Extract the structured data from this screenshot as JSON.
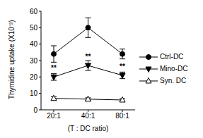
{
  "chart_data": {
    "type": "line",
    "categories": [
      "20:1",
      "40:1",
      "80:1"
    ],
    "x_label": "(T : DC ratio)",
    "y_label": "Thymidine uptake (X10⁻³)",
    "ylim": [
      0,
      60
    ],
    "yticks": [
      0,
      10,
      20,
      30,
      40,
      50,
      60
    ],
    "grid": false,
    "legend": "right",
    "series": [
      {
        "name": "Ctrl-DC",
        "color": "#000000",
        "marker": "circle",
        "line_style": "solid",
        "values": [
          34,
          50,
          34
        ],
        "errors": [
          5,
          6,
          3
        ]
      },
      {
        "name": "Mino-DC",
        "color": "#000000",
        "marker": "triangle_down",
        "line_style": "solid",
        "values": [
          20,
          27,
          21
        ],
        "errors": [
          2,
          3,
          2
        ],
        "significance": [
          "**",
          "**",
          "**"
        ]
      },
      {
        "name": "Syn. DC",
        "color": "#000000",
        "marker": "open_triangle_up",
        "line_style": "solid",
        "values": [
          7,
          6.5,
          6
        ],
        "errors": [
          1,
          0.8,
          0.8
        ]
      }
    ]
  }
}
